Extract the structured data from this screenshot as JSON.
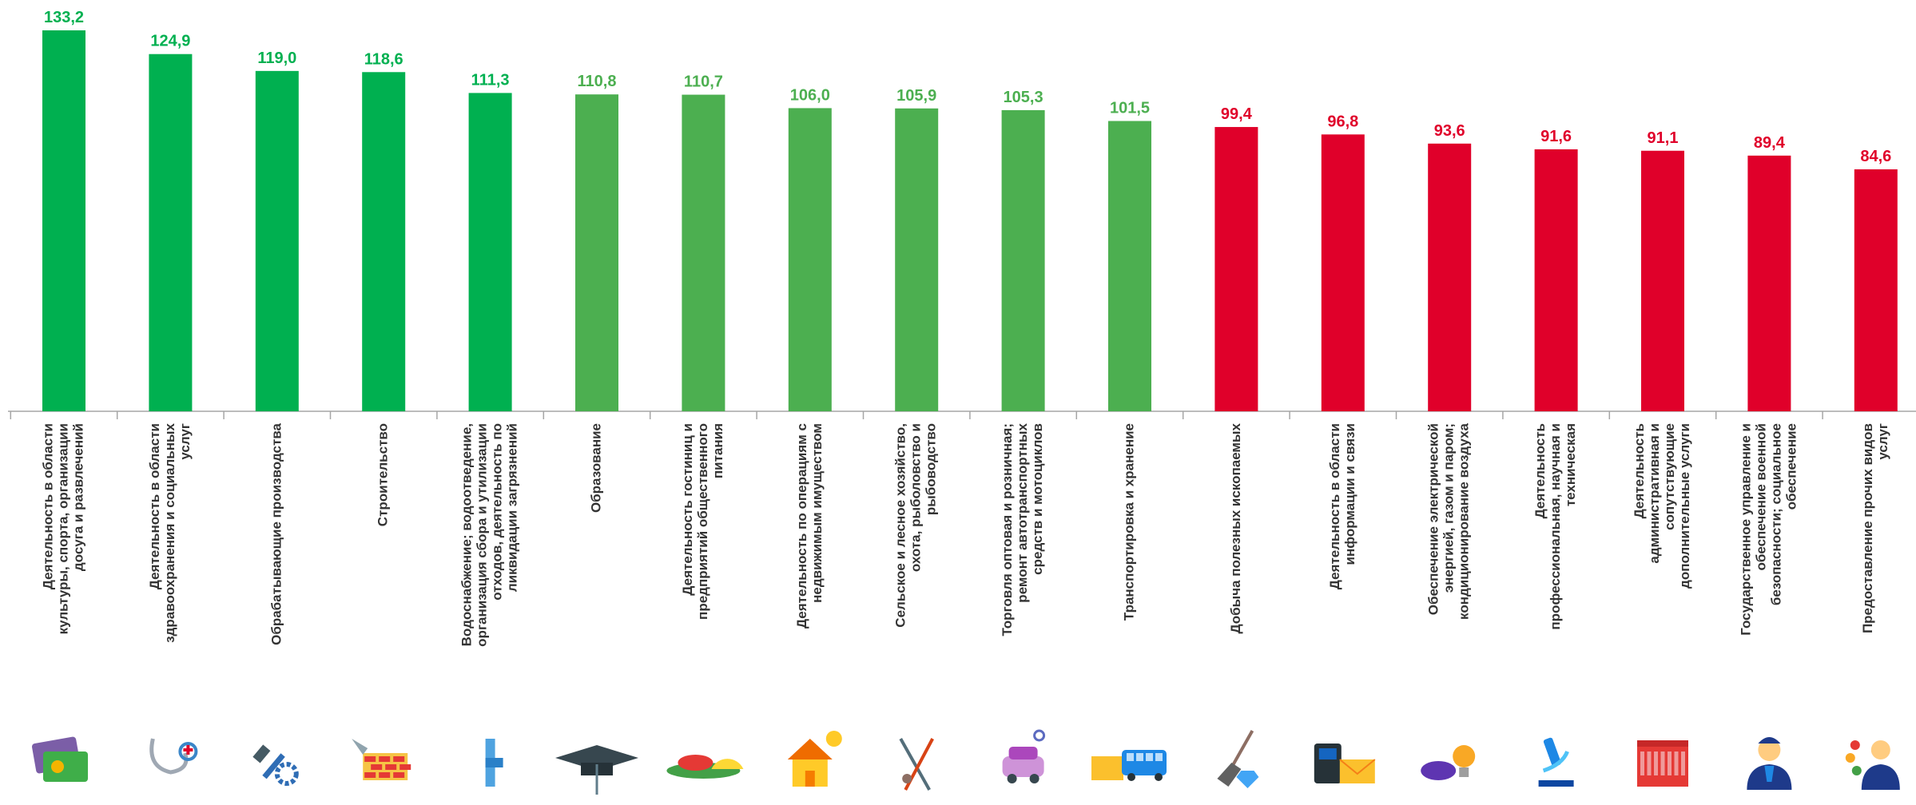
{
  "chart_data": {
    "type": "bar",
    "ylim": [
      0,
      140
    ],
    "grid": false,
    "categories": [
      [
        "Деятельность в области",
        "культуры, спорта, организации",
        "досуга и развлечений"
      ],
      [
        "Деятельность в области",
        "здравоохранения и социальных",
        "услуг"
      ],
      [
        "Обрабатывающие производства"
      ],
      [
        "Строительство"
      ],
      [
        "Водоснабжение; водоотведение,",
        "организация сбора и утилизации",
        "отходов, деятельность по",
        "ликвидации загрязнений"
      ],
      [
        "Образование"
      ],
      [
        "Деятельность гостиниц и",
        "предприятий общественного",
        "питания"
      ],
      [
        "Деятельность по операциям с",
        "недвижимым имуществом"
      ],
      [
        "Сельское и лесное хозяйство,",
        "охота, рыболовство и",
        "рыбоводство"
      ],
      [
        "Торговля оптовая и розничная;",
        "ремонт автотранспортных",
        "средств и мотоциклов"
      ],
      [
        "Транспортировка и хранение"
      ],
      [
        "Добыча полезных ископаемых"
      ],
      [
        "Деятельность в области",
        "информации и связи"
      ],
      [
        "Обеспечение электрической",
        "энергией, газом и паром;",
        "кондиционирование воздуха"
      ],
      [
        "Деятельность",
        "профессиональная, научная и",
        "техническая"
      ],
      [
        "Деятельность",
        "административная и",
        "сопутствующие",
        "дополнительные услуги"
      ],
      [
        "Государственное управление и",
        "обеспечение военной",
        "безопасности; социальное",
        "обеспечение"
      ],
      [
        "Предоставление прочих видов",
        "услуг"
      ]
    ],
    "values": [
      133.2,
      124.9,
      119.0,
      118.6,
      111.3,
      110.8,
      110.7,
      106.0,
      105.9,
      105.3,
      101.5,
      99.4,
      96.8,
      93.6,
      91.6,
      91.1,
      89.4,
      84.6
    ],
    "value_labels": [
      "133,2",
      "124,9",
      "119,0",
      "118,6",
      "111,3",
      "110,8",
      "110,7",
      "106,0",
      "105,9",
      "105,3",
      "101,5",
      "99,4",
      "96,8",
      "93,6",
      "91,6",
      "91,1",
      "89,4",
      "84,6"
    ],
    "bar_colors": [
      "#00b050",
      "#00b050",
      "#00b050",
      "#00b050",
      "#00b050",
      "#4caf50",
      "#4caf50",
      "#4caf50",
      "#4caf50",
      "#4caf50",
      "#4caf50",
      "#e0002a",
      "#e0002a",
      "#e0002a",
      "#e0002a",
      "#e0002a",
      "#e0002a",
      "#e0002a"
    ],
    "label_colors": [
      "#00b050",
      "#00b050",
      "#00b050",
      "#00b050",
      "#00b050",
      "#4caf50",
      "#4caf50",
      "#4caf50",
      "#4caf50",
      "#4caf50",
      "#4caf50",
      "#e0002a",
      "#e0002a",
      "#e0002a",
      "#e0002a",
      "#e0002a",
      "#e0002a",
      "#e0002a"
    ],
    "icons": [
      "culture-tickets-icon",
      "stethoscope-icon",
      "hammer-gear-icon",
      "brick-trowel-icon",
      "water-pipe-icon",
      "graduation-cap-icon",
      "food-platter-icon",
      "house-coins-icon",
      "fishing-axe-icon",
      "car-wrench-icon",
      "truck-bus-icon",
      "shovel-diamond-icon",
      "phone-envelope-icon",
      "lightbulb-plug-icon",
      "microscope-icon",
      "government-building-icon",
      "official-person-icon",
      "service-person-icon"
    ]
  }
}
